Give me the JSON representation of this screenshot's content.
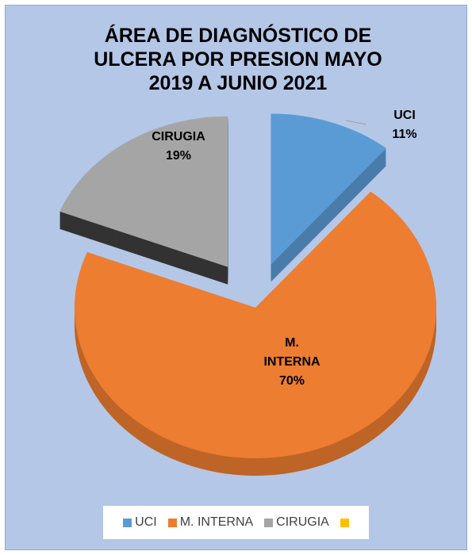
{
  "chart_data": {
    "type": "pie",
    "title": "ÁREA DE DIAGNÓSTICO DE ULCERA POR  PRESION  MAYO 2019 A JUNIO 2021",
    "categories": [
      "UCI",
      "M. INTERNA",
      "CIRUGIA",
      null
    ],
    "values": [
      11,
      70,
      19,
      null
    ],
    "value_labels": [
      "11%",
      "70%",
      "19%",
      null
    ],
    "colors": [
      "#5b9bd5",
      "#ed7d31",
      "#a5a5a5",
      "#ffc000"
    ],
    "legend": "bottom"
  }
}
